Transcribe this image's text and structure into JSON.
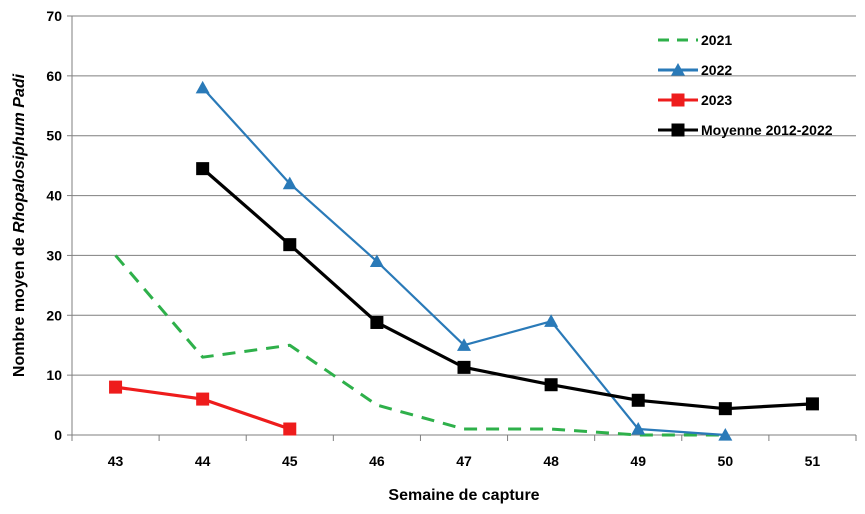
{
  "chart_data": {
    "type": "line",
    "xlabel": "Semaine de capture",
    "ylabel_prefix": "Nombre moyen de ",
    "ylabel_italic": "Rhopalosiphum Padi",
    "x": [
      43,
      44,
      45,
      46,
      47,
      48,
      49,
      50,
      51
    ],
    "xlim": [
      42.5,
      51.5
    ],
    "ylim": [
      0,
      70
    ],
    "yticks": [
      0,
      10,
      20,
      30,
      40,
      50,
      60,
      70
    ],
    "grid": true,
    "legend_position": "top-right",
    "series": [
      {
        "name": "2021",
        "x": [
          43,
          44,
          45,
          46,
          47,
          48,
          49,
          50
        ],
        "values": [
          30,
          13,
          15,
          5,
          1,
          1,
          0,
          0
        ],
        "color": "#2eb04a",
        "style": "dashed",
        "marker": "none"
      },
      {
        "name": "2022",
        "x": [
          44,
          45,
          46,
          47,
          48,
          49,
          50
        ],
        "values": [
          58,
          42,
          29,
          15,
          19,
          1,
          0
        ],
        "color": "#2a7ab8",
        "style": "solid",
        "marker": "triangle"
      },
      {
        "name": "2023",
        "x": [
          43,
          44,
          45
        ],
        "values": [
          8,
          6,
          1
        ],
        "color": "#ee1c1c",
        "style": "solid",
        "marker": "square"
      },
      {
        "name": "Moyenne 2012-2022",
        "x": [
          44,
          45,
          46,
          47,
          48,
          49,
          50,
          51
        ],
        "values": [
          44.5,
          31.8,
          18.8,
          11.3,
          8.4,
          5.8,
          4.4,
          5.2
        ],
        "color": "#000000",
        "style": "solid",
        "marker": "square"
      }
    ]
  }
}
